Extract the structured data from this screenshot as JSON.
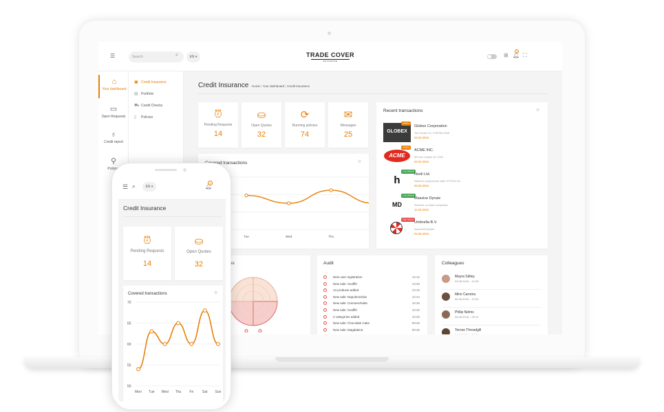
{
  "colors": {
    "accent": "#e87e04",
    "danger": "#e34d4d",
    "green": "#3aa04a"
  },
  "desktop": {
    "search": {
      "placeholder": "Search"
    },
    "language": "EN",
    "logo": {
      "title": "TRADE COVER",
      "subtitle": "EXCHANGE"
    },
    "notifications_count": "3",
    "sidenav": [
      {
        "label": "Your dashboard",
        "icon": "dashboard-icon"
      },
      {
        "label": "Open Requests",
        "icon": "requests-icon"
      },
      {
        "label": "Credit report",
        "icon": "bulb-icon"
      },
      {
        "label": "Policies",
        "icon": "policies-icon"
      }
    ],
    "subnav": [
      {
        "label": "Credit Insurance",
        "icon": "briefcase-icon"
      },
      {
        "label": "Portfolio",
        "icon": "portfolio-icon"
      },
      {
        "label": "Credit Checks",
        "icon": "cart-icon"
      },
      {
        "label": "Policies",
        "icon": "document-icon"
      }
    ],
    "page_title": "Credit Insurance",
    "breadcrumb": [
      "Home",
      "Your dashboard",
      "Credit Insurance"
    ],
    "stats": [
      {
        "label": "Pending Requests",
        "value": "14",
        "icon": "alarm-icon"
      },
      {
        "label": "Open Quotes",
        "value": "32",
        "icon": "basket-icon"
      },
      {
        "label": "Running policies",
        "value": "74",
        "icon": "refresh-icon"
      },
      {
        "label": "Messages",
        "value": "25",
        "icon": "mail-icon"
      }
    ],
    "covered_title": "Covered transactions",
    "recent_title": "Recent transactions",
    "transactions": [
      {
        "company": "Globex Corporation",
        "tag": "OPEN",
        "desc": "You invoice no. 1750756-2018",
        "date": "03.04.2018",
        "logo": "GLOBEX"
      },
      {
        "company": "ACME INC.",
        "tag": "OPEN",
        "desc": "50 tons of grain Q1 2018",
        "date": "03.04.2018",
        "logo": "ACME"
      },
      {
        "company": "Hooli Ltd.",
        "tag": "COVERED",
        "desc": "Network components order 2773112-90",
        "date": "25.03.2019",
        "logo": "h"
      },
      {
        "company": "Massive Dynaic",
        "tag": "COVERED",
        "desc": "Services on trade completion",
        "date": "11.03.2019",
        "logo": "MD"
      },
      {
        "company": "Umbrella B.V.",
        "tag": "ON HOLD",
        "desc": "Importer/Exporter",
        "date": "02.06.2019",
        "logo": ""
      }
    ],
    "categories_title": "gories",
    "audit_title": "Audit",
    "audit": [
      {
        "text": "New user registration",
        "time": "14:12"
      },
      {
        "text": "New sale: Soufflé",
        "time": "13:20"
      },
      {
        "text": "14 products added",
        "time": "13:15"
      },
      {
        "text": "New sale: Napoleonshat",
        "time": "12:44"
      },
      {
        "text": "New sale: Cremeschnitte",
        "time": "10:35"
      },
      {
        "text": "New sale: Soufflé",
        "time": "10:40"
      },
      {
        "text": "2 categories added",
        "time": "10:20"
      },
      {
        "text": "New sale: Chocolate Cake",
        "time": "09:28"
      },
      {
        "text": "New sale: Magdalena",
        "time": "09:25"
      }
    ],
    "colleagues_title": "Colleagues",
    "colleagues": [
      {
        "name": "Mayra Sibley",
        "time": "09.08.2018 – 12:45"
      },
      {
        "name": "Mimi Carreira",
        "time": "05.08.2018 – 10:35"
      },
      {
        "name": "Philip Nelms",
        "time": "06.08.2018 – 09:12"
      },
      {
        "name": "Terese Threadgill",
        "time": "01.08.2018 – 07:30"
      }
    ]
  },
  "mobile": {
    "language": "EN",
    "notifications_count": "3",
    "page_title": "Credit Insurance",
    "stats": [
      {
        "label": "Pending Requests",
        "value": "14",
        "icon": "alarm-icon"
      },
      {
        "label": "Open Quotes",
        "value": "32",
        "icon": "basket-icon"
      }
    ],
    "covered_title": "Covered transactions"
  },
  "chart_data": [
    {
      "type": "line",
      "title": "Covered transactions",
      "categories": [
        "Tue",
        "Wed",
        "Thu",
        "Fri",
        "Sat",
        "Sun"
      ],
      "values": [
        63,
        60,
        65,
        60,
        68,
        60
      ],
      "ylim": [
        50,
        70
      ]
    },
    {
      "type": "line",
      "title": "Covered transactions",
      "categories": [
        "Mon",
        "Tue",
        "Wed",
        "Thu",
        "Fri",
        "Sat",
        "Sun"
      ],
      "values": [
        54,
        63,
        60,
        65,
        60,
        68,
        60
      ],
      "yticks": [
        "70",
        "65",
        "60",
        "55",
        "50"
      ],
      "ylim": [
        50,
        70
      ]
    }
  ]
}
